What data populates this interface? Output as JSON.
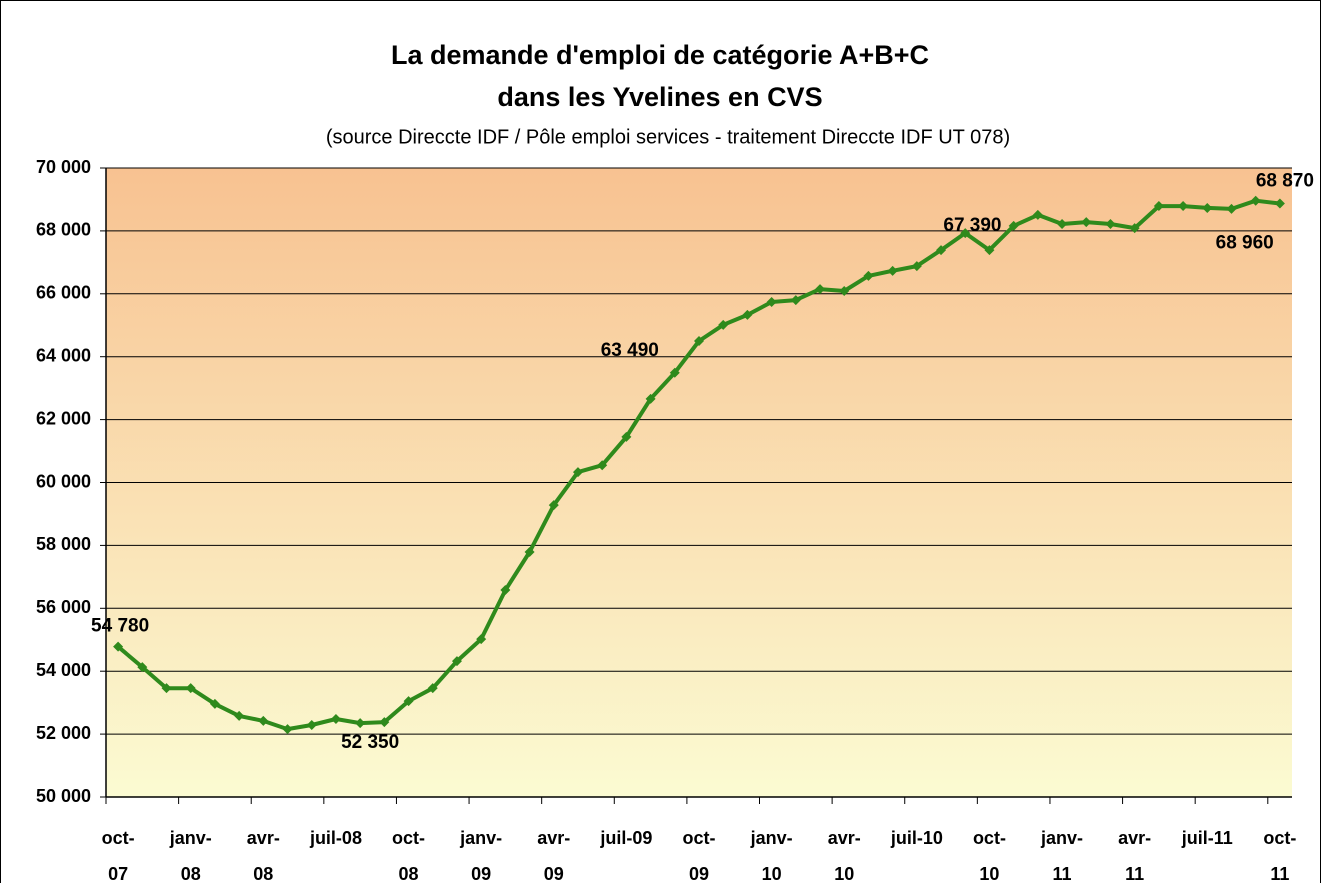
{
  "chart_data": {
    "type": "line",
    "title": [
      "La demande d'emploi de catégorie A+B+C",
      "dans les Yvelines en CVS"
    ],
    "subtitle": "(source Direccte IDF / Pôle emploi services - traitement Direccte IDF UT 078)",
    "categories": [
      "oct-07",
      null,
      null,
      "janv-08",
      null,
      null,
      "avr-08",
      null,
      null,
      "juil-08",
      null,
      null,
      "oct-08",
      null,
      null,
      "janv-09",
      null,
      null,
      "avr-09",
      null,
      null,
      "juil-09",
      null,
      null,
      "oct-09",
      null,
      null,
      "janv-10",
      null,
      null,
      "avr-10",
      null,
      null,
      "juil-10",
      null,
      null,
      "oct-10",
      null,
      null,
      "janv-11",
      null,
      null,
      "avr-11",
      null,
      null,
      "juil-11",
      null,
      null,
      "oct-11"
    ],
    "values": [
      54780,
      54130,
      53460,
      53460,
      52960,
      52580,
      52420,
      52160,
      52290,
      52480,
      52350,
      52380,
      53050,
      53460,
      54320,
      55020,
      56580,
      57790,
      59280,
      60330,
      60550,
      61450,
      62660,
      63490,
      64500,
      65010,
      65330,
      65740,
      65800,
      66150,
      66090,
      66570,
      66730,
      66880,
      67390,
      67930,
      67390,
      68160,
      68510,
      68220,
      68280,
      68220,
      68090,
      68790,
      68790,
      68730,
      68700,
      68960,
      68870
    ],
    "value_labels": [
      "54 780",
      null,
      null,
      null,
      null,
      null,
      null,
      null,
      null,
      null,
      "52 350",
      null,
      null,
      null,
      null,
      null,
      null,
      null,
      null,
      null,
      null,
      null,
      null,
      "63 490",
      null,
      null,
      null,
      null,
      null,
      null,
      null,
      null,
      null,
      null,
      null,
      null,
      "67 390",
      null,
      null,
      null,
      null,
      null,
      null,
      null,
      null,
      null,
      null,
      "68 960",
      "68 870"
    ],
    "color": "#2f8a1c",
    "ylim": [
      50000,
      70000
    ],
    "yticks": [
      {
        "value": 50000,
        "label": "50 000"
      },
      {
        "value": 52000,
        "label": "52 000"
      },
      {
        "value": 54000,
        "label": "54 000"
      },
      {
        "value": 56000,
        "label": "56 000"
      },
      {
        "value": 58000,
        "label": "58 000"
      },
      {
        "value": 60000,
        "label": "60 000"
      },
      {
        "value": 62000,
        "label": "62 000"
      },
      {
        "value": 64000,
        "label": "64 000"
      },
      {
        "value": 66000,
        "label": "66 000"
      },
      {
        "value": 68000,
        "label": "68 000"
      },
      {
        "value": 70000,
        "label": "70 000"
      }
    ],
    "grid": true
  }
}
